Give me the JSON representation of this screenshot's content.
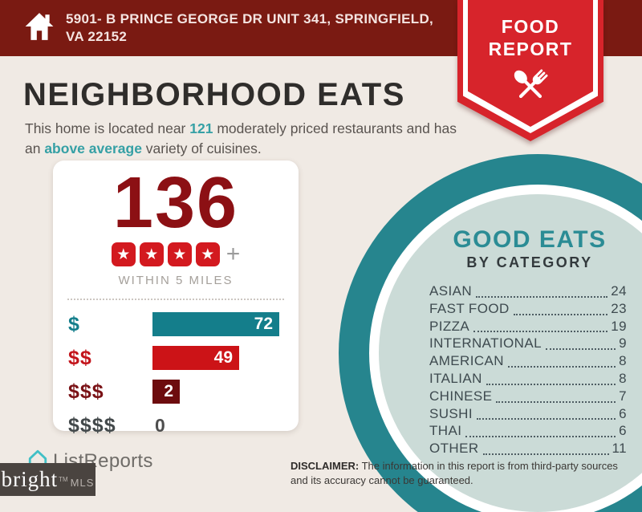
{
  "banner": {
    "address": "5901- B PRINCE GEORGE DR UNIT 341, SPRINGFIELD, VA 22152"
  },
  "ribbon": {
    "line1": "FOOD",
    "line2": "REPORT"
  },
  "title": "NEIGHBORHOOD EATS",
  "subtitle": {
    "pre": "This home is located near ",
    "count": "121",
    "mid": " moderately priced restaurants and has an ",
    "highlight": "above average",
    "post": " variety of cuisines."
  },
  "stats_card": {
    "total": "136",
    "stars": 4,
    "star_glyph": "★",
    "plus": "+",
    "radius_label": "WITHIN 5 MILES",
    "price_tiers": [
      {
        "label": "$",
        "value": 72,
        "bar_color": "#147e8b",
        "label_color": "#147e8b"
      },
      {
        "label": "$$",
        "value": 49,
        "bar_color": "#cc1317",
        "label_color": "#c3151c"
      },
      {
        "label": "$$$",
        "value": 2,
        "bar_color": "#6d0c0e",
        "label_color": "#7a1216"
      },
      {
        "label": "$$$$",
        "value": 0,
        "bar_color": null,
        "label_color": "#43494b"
      }
    ]
  },
  "categories_panel": {
    "title": "GOOD EATS",
    "subtitle": "BY CATEGORY",
    "items": [
      {
        "label": "ASIAN",
        "value": 24
      },
      {
        "label": "FAST FOOD",
        "value": 23
      },
      {
        "label": "PIZZA",
        "value": 19
      },
      {
        "label": "INTERNATIONAL",
        "value": 9
      },
      {
        "label": "AMERICAN",
        "value": 8
      },
      {
        "label": "ITALIAN",
        "value": 8
      },
      {
        "label": "CHINESE",
        "value": 7
      },
      {
        "label": "SUSHI",
        "value": 6
      },
      {
        "label": "THAI",
        "value": 6
      },
      {
        "label": "OTHER",
        "value": 11
      }
    ]
  },
  "footer": {
    "logo_text": "ListReports",
    "mls_primary": "bright",
    "mls_tm": "TM",
    "mls_secondary": "MLS",
    "disclaimer_label": "DISCLAIMER:",
    "disclaimer_text": " The information in this report is from third-party sources and its accuracy cannot be guaranteed."
  },
  "colors": {
    "banner_maroon": "#7a1a12",
    "ribbon_red": "#d7242b",
    "accent_teal": "#35a0a5",
    "ring_teal": "#26858e",
    "circle_fill": "#cbdbd7",
    "big_number_red": "#8c1014",
    "background": "#f0eae4"
  },
  "chart_data": [
    {
      "type": "bar",
      "orientation": "horizontal",
      "title": "136 restaurants rated 4+ stars within 5 miles",
      "categories": [
        "$",
        "$$",
        "$$$",
        "$$$$"
      ],
      "values": [
        72,
        49,
        2,
        0
      ],
      "colors": [
        "#147e8b",
        "#cc1317",
        "#6d0c0e",
        null
      ],
      "annotations": {
        "total": 136,
        "star_rating": "4+",
        "radius": "WITHIN 5 MILES"
      },
      "xlim": [
        0,
        72
      ],
      "grid": false,
      "legend": false
    },
    {
      "type": "table",
      "title": "GOOD EATS BY CATEGORY",
      "categories": [
        "ASIAN",
        "FAST FOOD",
        "PIZZA",
        "INTERNATIONAL",
        "AMERICAN",
        "ITALIAN",
        "CHINESE",
        "SUSHI",
        "THAI",
        "OTHER"
      ],
      "values": [
        24,
        23,
        19,
        9,
        8,
        8,
        7,
        6,
        6,
        11
      ]
    }
  ]
}
